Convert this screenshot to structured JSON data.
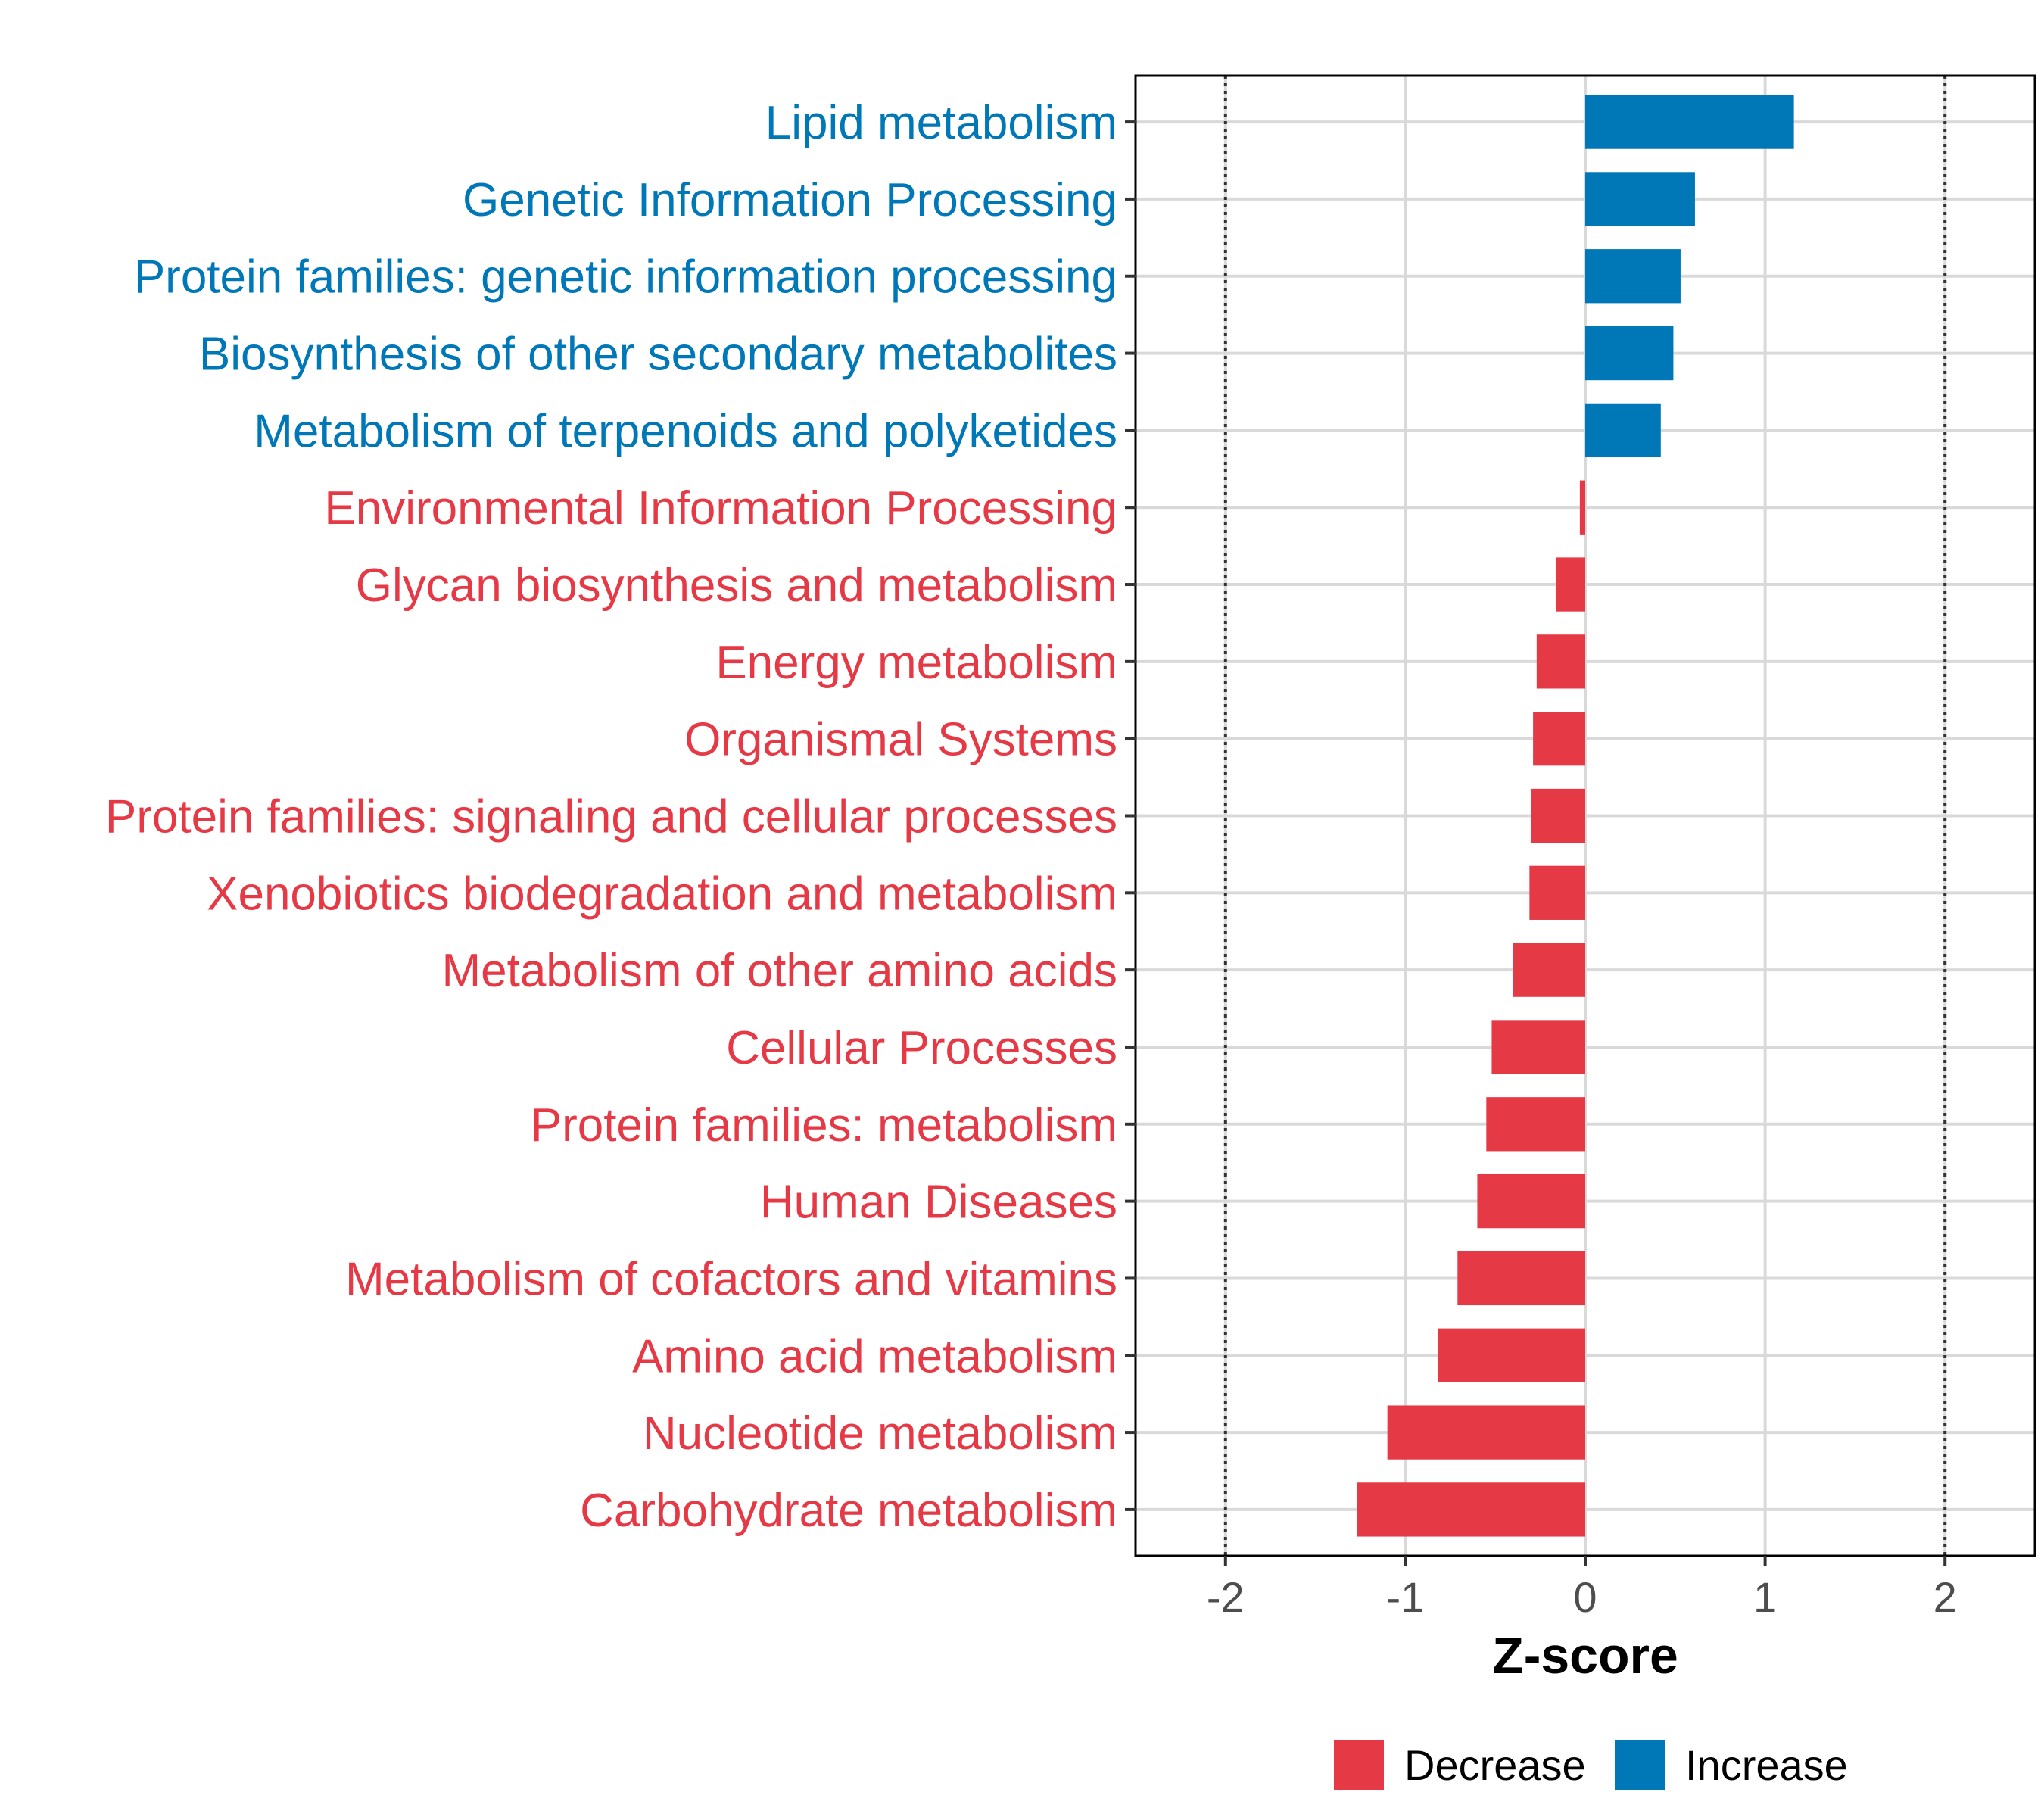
{
  "chart_data": {
    "type": "bar",
    "orientation": "horizontal",
    "xlabel": "Z-score",
    "xlim": [
      -2.5,
      2.5
    ],
    "xticks": [
      -2,
      -1,
      0,
      1,
      2
    ],
    "xtick_labels": [
      "-2",
      "-1",
      "0",
      "1",
      "2"
    ],
    "reference_lines": [
      -2,
      2
    ],
    "grid": true,
    "legend": {
      "position": "bottom",
      "entries": [
        {
          "label": "Decrease",
          "color": "#e63946"
        },
        {
          "label": "Increase",
          "color": "#0077b6"
        }
      ]
    },
    "categories": [
      {
        "label": "Lipid metabolism",
        "value": 1.16,
        "group": "Increase"
      },
      {
        "label": "Genetic Information Processing",
        "value": 0.61,
        "group": "Increase"
      },
      {
        "label": "Protein families: genetic information processing",
        "value": 0.53,
        "group": "Increase"
      },
      {
        "label": "Biosynthesis of other secondary metabolites",
        "value": 0.49,
        "group": "Increase"
      },
      {
        "label": "Metabolism of terpenoids and polyketides",
        "value": 0.42,
        "group": "Increase"
      },
      {
        "label": "Environmental Information Processing",
        "value": -0.03,
        "group": "Decrease"
      },
      {
        "label": "Glycan biosynthesis and metabolism",
        "value": -0.16,
        "group": "Decrease"
      },
      {
        "label": "Energy metabolism",
        "value": -0.27,
        "group": "Decrease"
      },
      {
        "label": "Organismal Systems",
        "value": -0.29,
        "group": "Decrease"
      },
      {
        "label": "Protein families: signaling and cellular processes",
        "value": -0.3,
        "group": "Decrease"
      },
      {
        "label": "Xenobiotics biodegradation and metabolism",
        "value": -0.31,
        "group": "Decrease"
      },
      {
        "label": "Metabolism of other amino acids",
        "value": -0.4,
        "group": "Decrease"
      },
      {
        "label": "Cellular Processes",
        "value": -0.52,
        "group": "Decrease"
      },
      {
        "label": "Protein families: metabolism",
        "value": -0.55,
        "group": "Decrease"
      },
      {
        "label": "Human Diseases",
        "value": -0.6,
        "group": "Decrease"
      },
      {
        "label": "Metabolism of cofactors and vitamins",
        "value": -0.71,
        "group": "Decrease"
      },
      {
        "label": "Amino acid metabolism",
        "value": -0.82,
        "group": "Decrease"
      },
      {
        "label": "Nucleotide metabolism",
        "value": -1.1,
        "group": "Decrease"
      },
      {
        "label": "Carbohydrate metabolism",
        "value": -1.27,
        "group": "Decrease"
      }
    ]
  }
}
